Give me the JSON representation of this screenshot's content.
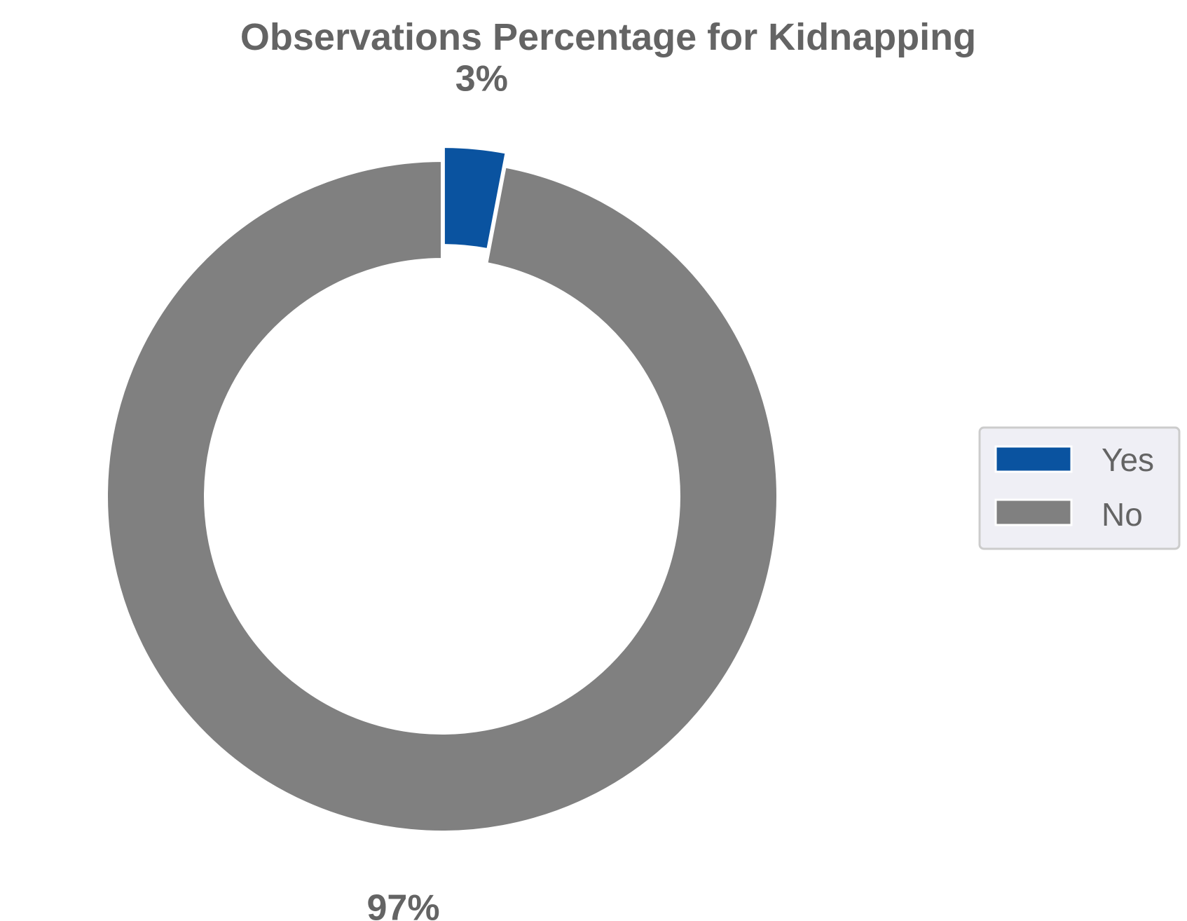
{
  "chart_data": {
    "type": "pie",
    "title": "Observations Percentage for Kidnapping",
    "categories": [
      "Yes",
      "No"
    ],
    "values": [
      3,
      97
    ],
    "value_labels": [
      "3%",
      "97%"
    ],
    "colors": [
      "#0a53a0",
      "#808080"
    ],
    "donut": true,
    "exploded": [
      "Yes"
    ],
    "start_angle": "top",
    "direction": "clockwise",
    "legend": {
      "placement": "right",
      "entries": [
        "Yes",
        "No"
      ]
    }
  }
}
